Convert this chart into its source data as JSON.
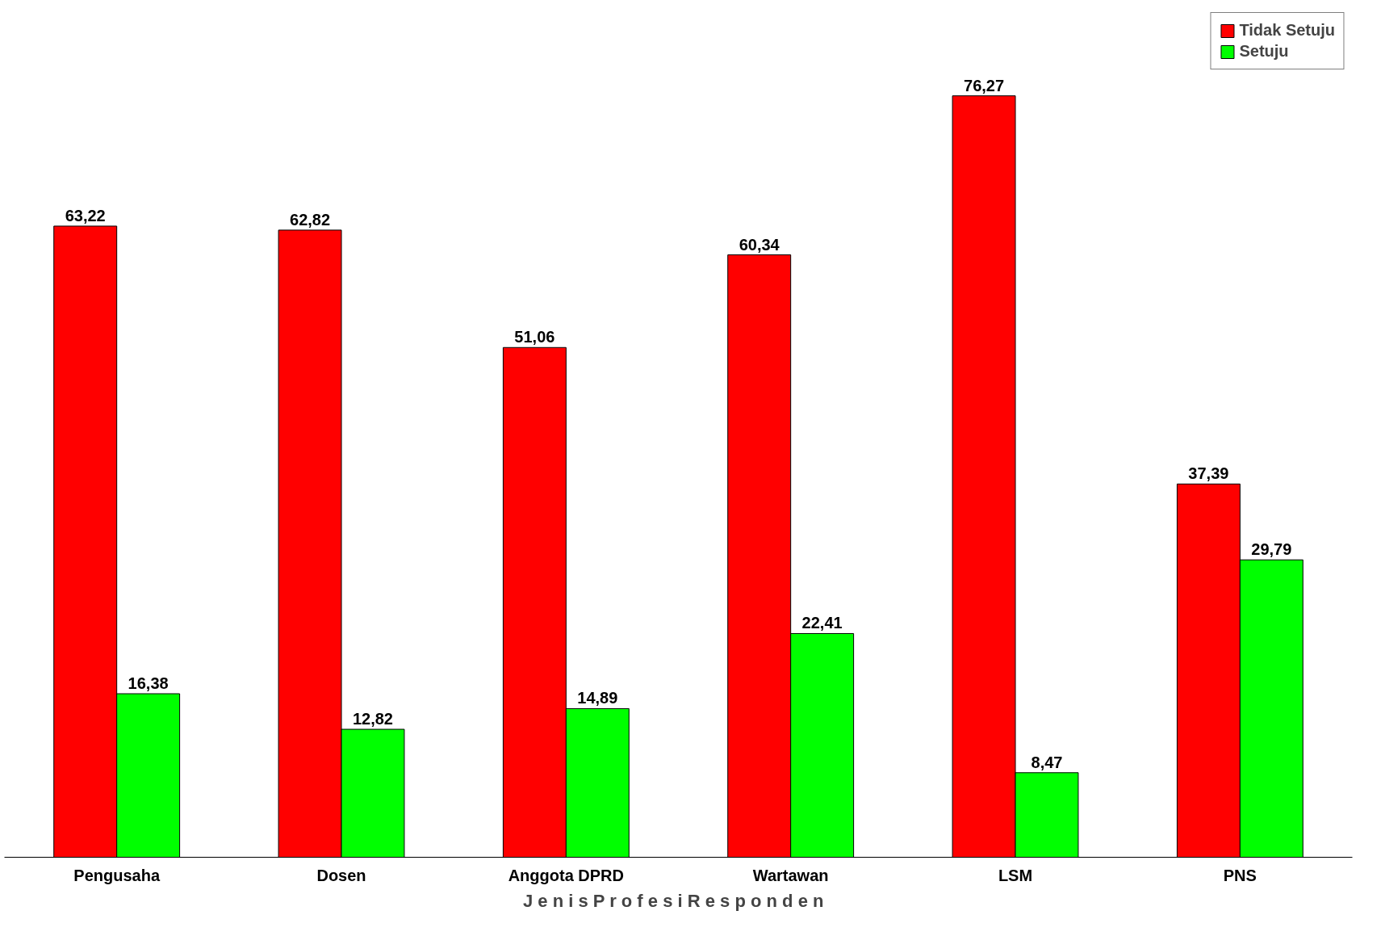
{
  "chart_data": {
    "type": "bar",
    "xlabel": "J e n i s  P r o f e s i  R e s p o n d e n",
    "categories": [
      "Pengusaha",
      "Dosen",
      "Anggota DPRD",
      "Wartawan",
      "LSM",
      "PNS"
    ],
    "series": [
      {
        "name": "Tidak Setuju",
        "color": "#ff0000",
        "values": [
          63.22,
          62.82,
          51.06,
          60.34,
          76.27,
          37.39
        ],
        "value_labels": [
          "63,22",
          "62,82",
          "51,06",
          "60,34",
          "76,27",
          "37,39"
        ]
      },
      {
        "name": "Setuju",
        "color": "#00ff00",
        "values": [
          16.38,
          12.82,
          14.89,
          22.41,
          8.47,
          29.79
        ],
        "value_labels": [
          "16,38",
          "12,82",
          "14,89",
          "22,41",
          "8,47",
          "29,79"
        ]
      }
    ],
    "legend": "top right",
    "grid": false,
    "tick_labels": "x"
  }
}
